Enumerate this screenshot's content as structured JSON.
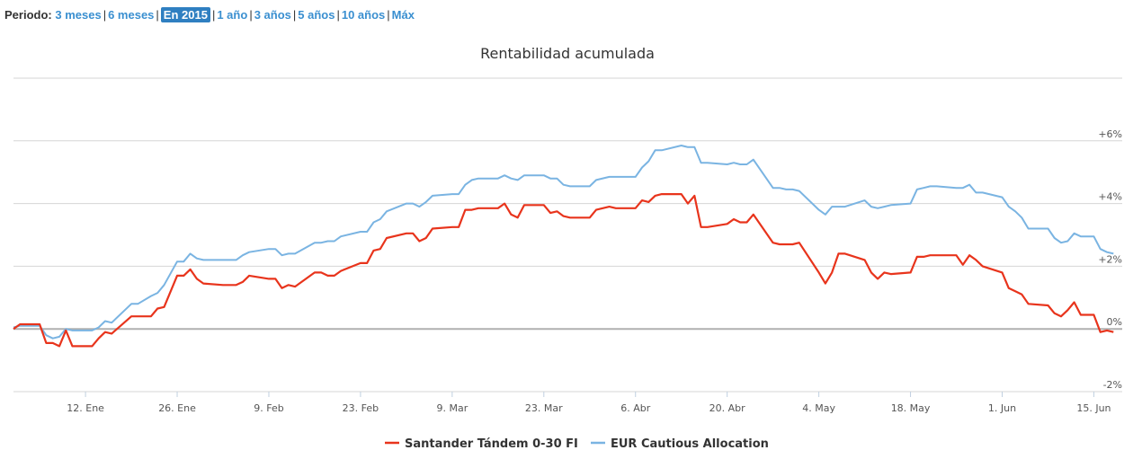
{
  "period": {
    "label": "Periodo:",
    "options": [
      {
        "label": "3 meses",
        "active": false
      },
      {
        "label": "6 meses",
        "active": false
      },
      {
        "label": "En 2015",
        "active": true
      },
      {
        "label": "1 año",
        "active": false
      },
      {
        "label": "3 años",
        "active": false
      },
      {
        "label": "5 años",
        "active": false
      },
      {
        "label": "10 años",
        "active": false
      },
      {
        "label": "Máx",
        "active": false
      }
    ]
  },
  "chart_data": {
    "type": "line",
    "title": "Rentabilidad acumulada",
    "xlabel": "",
    "ylabel": "",
    "grid": true,
    "legend_position": "bottom-center",
    "x_range": [
      "2015-01-01",
      "2015-06-17"
    ],
    "ylim": [
      -2,
      8
    ],
    "y_ticks": [
      {
        "value": 6,
        "label": "+6%"
      },
      {
        "value": 4,
        "label": "+4%"
      },
      {
        "value": 2,
        "label": "+2%"
      },
      {
        "value": 0,
        "label": "0%"
      },
      {
        "value": -2,
        "label": "-2%"
      }
    ],
    "x_ticks": [
      {
        "date": "2015-01-12",
        "label": "12. Ene"
      },
      {
        "date": "2015-01-26",
        "label": "26. Ene"
      },
      {
        "date": "2015-02-09",
        "label": "9. Feb"
      },
      {
        "date": "2015-02-23",
        "label": "23. Feb"
      },
      {
        "date": "2015-03-09",
        "label": "9. Mar"
      },
      {
        "date": "2015-03-23",
        "label": "23. Mar"
      },
      {
        "date": "2015-04-06",
        "label": "6. Abr"
      },
      {
        "date": "2015-04-20",
        "label": "20. Abr"
      },
      {
        "date": "2015-05-04",
        "label": "4. May"
      },
      {
        "date": "2015-05-18",
        "label": "18. May"
      },
      {
        "date": "2015-06-01",
        "label": "1. Jun"
      },
      {
        "date": "2015-06-15",
        "label": "15. Jun"
      }
    ],
    "series": [
      {
        "name": "Santander Tándem 0-30 FI",
        "color": "#e8341c",
        "points": [
          [
            "2015-01-01",
            0.0
          ],
          [
            "2015-01-02",
            0.15
          ],
          [
            "2015-01-05",
            0.15
          ],
          [
            "2015-01-06",
            -0.45
          ],
          [
            "2015-01-07",
            -0.45
          ],
          [
            "2015-01-08",
            -0.55
          ],
          [
            "2015-01-09",
            -0.05
          ],
          [
            "2015-01-10",
            -0.55
          ],
          [
            "2015-01-13",
            -0.55
          ],
          [
            "2015-01-14",
            -0.3
          ],
          [
            "2015-01-15",
            -0.1
          ],
          [
            "2015-01-16",
            -0.15
          ],
          [
            "2015-01-19",
            0.4
          ],
          [
            "2015-01-20",
            0.4
          ],
          [
            "2015-01-22",
            0.4
          ],
          [
            "2015-01-23",
            0.65
          ],
          [
            "2015-01-24",
            0.7
          ],
          [
            "2015-01-26",
            1.7
          ],
          [
            "2015-01-27",
            1.7
          ],
          [
            "2015-01-28",
            1.9
          ],
          [
            "2015-01-29",
            1.6
          ],
          [
            "2015-01-30",
            1.45
          ],
          [
            "2015-02-02",
            1.4
          ],
          [
            "2015-02-04",
            1.4
          ],
          [
            "2015-02-05",
            1.5
          ],
          [
            "2015-02-06",
            1.7
          ],
          [
            "2015-02-09",
            1.6
          ],
          [
            "2015-02-10",
            1.6
          ],
          [
            "2015-02-11",
            1.3
          ],
          [
            "2015-02-12",
            1.4
          ],
          [
            "2015-02-13",
            1.35
          ],
          [
            "2015-02-16",
            1.8
          ],
          [
            "2015-02-17",
            1.8
          ],
          [
            "2015-02-18",
            1.7
          ],
          [
            "2015-02-19",
            1.7
          ],
          [
            "2015-02-20",
            1.85
          ],
          [
            "2015-02-23",
            2.1
          ],
          [
            "2015-02-24",
            2.1
          ],
          [
            "2015-02-25",
            2.5
          ],
          [
            "2015-02-26",
            2.55
          ],
          [
            "2015-02-27",
            2.9
          ],
          [
            "2015-03-02",
            3.05
          ],
          [
            "2015-03-03",
            3.05
          ],
          [
            "2015-03-04",
            2.8
          ],
          [
            "2015-03-05",
            2.9
          ],
          [
            "2015-03-06",
            3.2
          ],
          [
            "2015-03-09",
            3.25
          ],
          [
            "2015-03-10",
            3.25
          ],
          [
            "2015-03-11",
            3.8
          ],
          [
            "2015-03-12",
            3.8
          ],
          [
            "2015-03-13",
            3.85
          ],
          [
            "2015-03-16",
            3.85
          ],
          [
            "2015-03-17",
            4.0
          ],
          [
            "2015-03-18",
            3.65
          ],
          [
            "2015-03-19",
            3.55
          ],
          [
            "2015-03-20",
            3.95
          ],
          [
            "2015-03-23",
            3.95
          ],
          [
            "2015-03-24",
            3.7
          ],
          [
            "2015-03-25",
            3.75
          ],
          [
            "2015-03-26",
            3.6
          ],
          [
            "2015-03-27",
            3.55
          ],
          [
            "2015-03-30",
            3.55
          ],
          [
            "2015-03-31",
            3.8
          ],
          [
            "2015-04-02",
            3.9
          ],
          [
            "2015-04-03",
            3.85
          ],
          [
            "2015-04-06",
            3.85
          ],
          [
            "2015-04-07",
            4.1
          ],
          [
            "2015-04-08",
            4.05
          ],
          [
            "2015-04-09",
            4.25
          ],
          [
            "2015-04-10",
            4.3
          ],
          [
            "2015-04-13",
            4.3
          ],
          [
            "2015-04-14",
            4.0
          ],
          [
            "2015-04-15",
            4.25
          ],
          [
            "2015-04-16",
            3.25
          ],
          [
            "2015-04-17",
            3.25
          ],
          [
            "2015-04-20",
            3.35
          ],
          [
            "2015-04-21",
            3.5
          ],
          [
            "2015-04-22",
            3.4
          ],
          [
            "2015-04-23",
            3.4
          ],
          [
            "2015-04-24",
            3.65
          ],
          [
            "2015-04-27",
            2.75
          ],
          [
            "2015-04-28",
            2.7
          ],
          [
            "2015-04-29",
            2.7
          ],
          [
            "2015-04-30",
            2.7
          ],
          [
            "2015-05-01",
            2.75
          ],
          [
            "2015-05-04",
            1.8
          ],
          [
            "2015-05-05",
            1.45
          ],
          [
            "2015-05-06",
            1.8
          ],
          [
            "2015-05-07",
            2.4
          ],
          [
            "2015-05-08",
            2.4
          ],
          [
            "2015-05-11",
            2.2
          ],
          [
            "2015-05-12",
            1.8
          ],
          [
            "2015-05-13",
            1.6
          ],
          [
            "2015-05-14",
            1.8
          ],
          [
            "2015-05-15",
            1.75
          ],
          [
            "2015-05-18",
            1.8
          ],
          [
            "2015-05-19",
            2.3
          ],
          [
            "2015-05-20",
            2.3
          ],
          [
            "2015-05-21",
            2.35
          ],
          [
            "2015-05-22",
            2.35
          ],
          [
            "2015-05-25",
            2.35
          ],
          [
            "2015-05-26",
            2.05
          ],
          [
            "2015-05-27",
            2.35
          ],
          [
            "2015-05-28",
            2.2
          ],
          [
            "2015-05-29",
            2.0
          ],
          [
            "2015-06-01",
            1.8
          ],
          [
            "2015-06-02",
            1.3
          ],
          [
            "2015-06-03",
            1.2
          ],
          [
            "2015-06-04",
            1.1
          ],
          [
            "2015-06-05",
            0.8
          ],
          [
            "2015-06-08",
            0.75
          ],
          [
            "2015-06-09",
            0.5
          ],
          [
            "2015-06-10",
            0.4
          ],
          [
            "2015-06-11",
            0.6
          ],
          [
            "2015-06-12",
            0.85
          ],
          [
            "2015-06-13",
            0.45
          ],
          [
            "2015-06-15",
            0.45
          ],
          [
            "2015-06-16",
            -0.1
          ],
          [
            "2015-06-17",
            -0.05
          ],
          [
            "2015-06-18",
            -0.1
          ]
        ]
      },
      {
        "name": "EUR Cautious Allocation",
        "color": "#7ab4e2",
        "points": [
          [
            "2015-01-01",
            0.05
          ],
          [
            "2015-01-02",
            0.1
          ],
          [
            "2015-01-05",
            0.1
          ],
          [
            "2015-01-06",
            -0.2
          ],
          [
            "2015-01-07",
            -0.3
          ],
          [
            "2015-01-08",
            -0.25
          ],
          [
            "2015-01-09",
            0.0
          ],
          [
            "2015-01-10",
            -0.05
          ],
          [
            "2015-01-13",
            -0.05
          ],
          [
            "2015-01-14",
            0.05
          ],
          [
            "2015-01-15",
            0.25
          ],
          [
            "2015-01-16",
            0.2
          ],
          [
            "2015-01-19",
            0.8
          ],
          [
            "2015-01-20",
            0.8
          ],
          [
            "2015-01-22",
            1.05
          ],
          [
            "2015-01-23",
            1.15
          ],
          [
            "2015-01-24",
            1.4
          ],
          [
            "2015-01-26",
            2.15
          ],
          [
            "2015-01-27",
            2.15
          ],
          [
            "2015-01-28",
            2.4
          ],
          [
            "2015-01-29",
            2.25
          ],
          [
            "2015-01-30",
            2.2
          ],
          [
            "2015-02-02",
            2.2
          ],
          [
            "2015-02-04",
            2.2
          ],
          [
            "2015-02-05",
            2.35
          ],
          [
            "2015-02-06",
            2.45
          ],
          [
            "2015-02-09",
            2.55
          ],
          [
            "2015-02-10",
            2.55
          ],
          [
            "2015-02-11",
            2.35
          ],
          [
            "2015-02-12",
            2.4
          ],
          [
            "2015-02-13",
            2.4
          ],
          [
            "2015-02-16",
            2.75
          ],
          [
            "2015-02-17",
            2.75
          ],
          [
            "2015-02-18",
            2.8
          ],
          [
            "2015-02-19",
            2.8
          ],
          [
            "2015-02-20",
            2.95
          ],
          [
            "2015-02-23",
            3.1
          ],
          [
            "2015-02-24",
            3.1
          ],
          [
            "2015-02-25",
            3.4
          ],
          [
            "2015-02-26",
            3.5
          ],
          [
            "2015-02-27",
            3.75
          ],
          [
            "2015-03-02",
            4.0
          ],
          [
            "2015-03-03",
            4.0
          ],
          [
            "2015-03-04",
            3.9
          ],
          [
            "2015-03-05",
            4.05
          ],
          [
            "2015-03-06",
            4.25
          ],
          [
            "2015-03-09",
            4.3
          ],
          [
            "2015-03-10",
            4.3
          ],
          [
            "2015-03-11",
            4.6
          ],
          [
            "2015-03-12",
            4.75
          ],
          [
            "2015-03-13",
            4.8
          ],
          [
            "2015-03-16",
            4.8
          ],
          [
            "2015-03-17",
            4.9
          ],
          [
            "2015-03-18",
            4.8
          ],
          [
            "2015-03-19",
            4.75
          ],
          [
            "2015-03-20",
            4.9
          ],
          [
            "2015-03-23",
            4.9
          ],
          [
            "2015-03-24",
            4.8
          ],
          [
            "2015-03-25",
            4.8
          ],
          [
            "2015-03-26",
            4.6
          ],
          [
            "2015-03-27",
            4.55
          ],
          [
            "2015-03-30",
            4.55
          ],
          [
            "2015-03-31",
            4.75
          ],
          [
            "2015-04-02",
            4.85
          ],
          [
            "2015-04-03",
            4.85
          ],
          [
            "2015-04-06",
            4.85
          ],
          [
            "2015-04-07",
            5.15
          ],
          [
            "2015-04-08",
            5.35
          ],
          [
            "2015-04-09",
            5.7
          ],
          [
            "2015-04-10",
            5.7
          ],
          [
            "2015-04-13",
            5.85
          ],
          [
            "2015-04-14",
            5.8
          ],
          [
            "2015-04-15",
            5.8
          ],
          [
            "2015-04-16",
            5.3
          ],
          [
            "2015-04-17",
            5.3
          ],
          [
            "2015-04-20",
            5.25
          ],
          [
            "2015-04-21",
            5.3
          ],
          [
            "2015-04-22",
            5.25
          ],
          [
            "2015-04-23",
            5.25
          ],
          [
            "2015-04-24",
            5.4
          ],
          [
            "2015-04-27",
            4.5
          ],
          [
            "2015-04-28",
            4.5
          ],
          [
            "2015-04-29",
            4.45
          ],
          [
            "2015-04-30",
            4.45
          ],
          [
            "2015-05-01",
            4.4
          ],
          [
            "2015-05-04",
            3.8
          ],
          [
            "2015-05-05",
            3.65
          ],
          [
            "2015-05-06",
            3.9
          ],
          [
            "2015-05-07",
            3.9
          ],
          [
            "2015-05-08",
            3.9
          ],
          [
            "2015-05-11",
            4.1
          ],
          [
            "2015-05-12",
            3.9
          ],
          [
            "2015-05-13",
            3.85
          ],
          [
            "2015-05-14",
            3.9
          ],
          [
            "2015-05-15",
            3.95
          ],
          [
            "2015-05-18",
            4.0
          ],
          [
            "2015-05-19",
            4.45
          ],
          [
            "2015-05-20",
            4.5
          ],
          [
            "2015-05-21",
            4.55
          ],
          [
            "2015-05-22",
            4.55
          ],
          [
            "2015-05-25",
            4.5
          ],
          [
            "2015-05-26",
            4.5
          ],
          [
            "2015-05-27",
            4.6
          ],
          [
            "2015-05-28",
            4.35
          ],
          [
            "2015-05-29",
            4.35
          ],
          [
            "2015-06-01",
            4.2
          ],
          [
            "2015-06-02",
            3.9
          ],
          [
            "2015-06-03",
            3.75
          ],
          [
            "2015-06-04",
            3.55
          ],
          [
            "2015-06-05",
            3.2
          ],
          [
            "2015-06-08",
            3.2
          ],
          [
            "2015-06-09",
            2.9
          ],
          [
            "2015-06-10",
            2.75
          ],
          [
            "2015-06-11",
            2.8
          ],
          [
            "2015-06-12",
            3.05
          ],
          [
            "2015-06-13",
            2.95
          ],
          [
            "2015-06-15",
            2.95
          ],
          [
            "2015-06-16",
            2.55
          ],
          [
            "2015-06-17",
            2.45
          ],
          [
            "2015-06-18",
            2.4
          ]
        ]
      }
    ]
  }
}
